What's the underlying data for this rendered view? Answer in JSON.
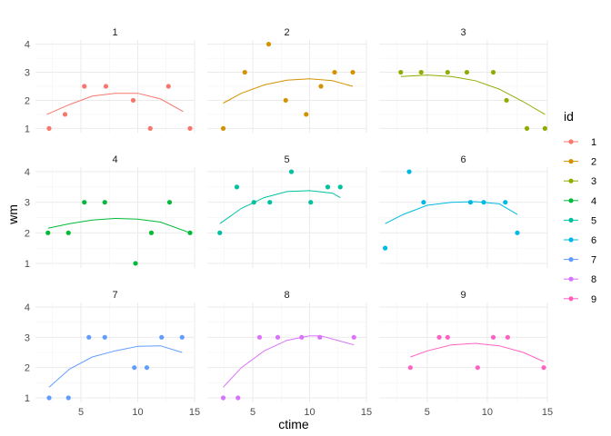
{
  "chart_data": {
    "type": "scatter",
    "facet_type": "wrap",
    "ncol": 3,
    "xlabel": "ctime",
    "ylabel": "wm",
    "xlim": [
      1,
      15
    ],
    "ylim": [
      0.85,
      4.15
    ],
    "x_ticks": [
      5,
      10,
      15
    ],
    "y_ticks": [
      1,
      2,
      3,
      4
    ],
    "grid": true,
    "smooth": "loess",
    "legend": {
      "title": "id",
      "position": "right",
      "entries": [
        "1",
        "2",
        "3",
        "4",
        "5",
        "6",
        "7",
        "8",
        "9"
      ]
    },
    "series": [
      {
        "name": "1",
        "color": "#F8766D",
        "points": [
          {
            "x": 2.2,
            "y": 1
          },
          {
            "x": 3.6,
            "y": 1.5
          },
          {
            "x": 5.3,
            "y": 2.5
          },
          {
            "x": 7.2,
            "y": 2.5
          },
          {
            "x": 9.6,
            "y": 2
          },
          {
            "x": 11.1,
            "y": 1
          },
          {
            "x": 12.7,
            "y": 2.5
          },
          {
            "x": 14.6,
            "y": 1
          }
        ],
        "fit": [
          {
            "x": 2,
            "y": 1.5
          },
          {
            "x": 4,
            "y": 1.85
          },
          {
            "x": 6,
            "y": 2.15
          },
          {
            "x": 8,
            "y": 2.25
          },
          {
            "x": 10,
            "y": 2.25
          },
          {
            "x": 12,
            "y": 2.05
          },
          {
            "x": 14,
            "y": 1.6
          }
        ]
      },
      {
        "name": "2",
        "color": "#D39200",
        "points": [
          {
            "x": 2.4,
            "y": 1
          },
          {
            "x": 4.3,
            "y": 3
          },
          {
            "x": 6.4,
            "y": 4
          },
          {
            "x": 7.9,
            "y": 2
          },
          {
            "x": 9.7,
            "y": 1.5
          },
          {
            "x": 11,
            "y": 2.5
          },
          {
            "x": 12.2,
            "y": 3
          },
          {
            "x": 13.8,
            "y": 3
          }
        ],
        "fit": [
          {
            "x": 2.4,
            "y": 1.9
          },
          {
            "x": 4,
            "y": 2.25
          },
          {
            "x": 6,
            "y": 2.55
          },
          {
            "x": 8,
            "y": 2.72
          },
          {
            "x": 10,
            "y": 2.77
          },
          {
            "x": 12,
            "y": 2.7
          },
          {
            "x": 13.8,
            "y": 2.5
          }
        ]
      },
      {
        "name": "3",
        "color": "#93AA00",
        "points": [
          {
            "x": 2.8,
            "y": 3
          },
          {
            "x": 4.5,
            "y": 3
          },
          {
            "x": 6.7,
            "y": 3
          },
          {
            "x": 8.3,
            "y": 3
          },
          {
            "x": 10.5,
            "y": 3
          },
          {
            "x": 11.6,
            "y": 2
          },
          {
            "x": 13.3,
            "y": 1
          },
          {
            "x": 14.8,
            "y": 1
          }
        ],
        "fit": [
          {
            "x": 2.8,
            "y": 2.85
          },
          {
            "x": 5,
            "y": 2.9
          },
          {
            "x": 7,
            "y": 2.85
          },
          {
            "x": 9,
            "y": 2.7
          },
          {
            "x": 11,
            "y": 2.4
          },
          {
            "x": 13,
            "y": 1.95
          },
          {
            "x": 14.8,
            "y": 1.5
          }
        ]
      },
      {
        "name": "4",
        "color": "#00BA38",
        "points": [
          {
            "x": 2.1,
            "y": 2
          },
          {
            "x": 3.9,
            "y": 2
          },
          {
            "x": 5.3,
            "y": 3
          },
          {
            "x": 7.1,
            "y": 3
          },
          {
            "x": 9.8,
            "y": 1
          },
          {
            "x": 11.2,
            "y": 2
          },
          {
            "x": 12.8,
            "y": 3
          },
          {
            "x": 14.6,
            "y": 2
          }
        ],
        "fit": [
          {
            "x": 2.1,
            "y": 2.15
          },
          {
            "x": 4,
            "y": 2.3
          },
          {
            "x": 6,
            "y": 2.42
          },
          {
            "x": 8,
            "y": 2.47
          },
          {
            "x": 10,
            "y": 2.45
          },
          {
            "x": 12,
            "y": 2.35
          },
          {
            "x": 14.6,
            "y": 2
          }
        ]
      },
      {
        "name": "5",
        "color": "#00C19F",
        "points": [
          {
            "x": 2.1,
            "y": 2
          },
          {
            "x": 3.6,
            "y": 3.5
          },
          {
            "x": 5.1,
            "y": 3
          },
          {
            "x": 6.5,
            "y": 3
          },
          {
            "x": 8.4,
            "y": 4
          },
          {
            "x": 10.1,
            "y": 3
          },
          {
            "x": 11.6,
            "y": 3.5
          },
          {
            "x": 12.7,
            "y": 3.5
          }
        ],
        "fit": [
          {
            "x": 2.1,
            "y": 2.3
          },
          {
            "x": 4,
            "y": 2.8
          },
          {
            "x": 6,
            "y": 3.15
          },
          {
            "x": 8,
            "y": 3.35
          },
          {
            "x": 10,
            "y": 3.38
          },
          {
            "x": 12,
            "y": 3.3
          },
          {
            "x": 12.7,
            "y": 3.15
          }
        ]
      },
      {
        "name": "6",
        "color": "#00B9E3",
        "points": [
          {
            "x": 1.5,
            "y": 1.5
          },
          {
            "x": 3.5,
            "y": 4
          },
          {
            "x": 4.7,
            "y": 3
          },
          {
            "x": 8.6,
            "y": 3
          },
          {
            "x": 9.7,
            "y": 3
          },
          {
            "x": 11.5,
            "y": 3
          },
          {
            "x": 12.5,
            "y": 2
          }
        ],
        "fit": [
          {
            "x": 1.5,
            "y": 2.3
          },
          {
            "x": 3,
            "y": 2.6
          },
          {
            "x": 5,
            "y": 2.9
          },
          {
            "x": 7,
            "y": 3
          },
          {
            "x": 9,
            "y": 3.02
          },
          {
            "x": 11,
            "y": 2.95
          },
          {
            "x": 12.5,
            "y": 2.6
          }
        ]
      },
      {
        "name": "7",
        "color": "#619CFF",
        "points": [
          {
            "x": 2.2,
            "y": 1
          },
          {
            "x": 3.9,
            "y": 1
          },
          {
            "x": 5.7,
            "y": 3
          },
          {
            "x": 7.1,
            "y": 3
          },
          {
            "x": 9.7,
            "y": 2
          },
          {
            "x": 10.8,
            "y": 2
          },
          {
            "x": 12.1,
            "y": 3
          },
          {
            "x": 13.9,
            "y": 3
          }
        ],
        "fit": [
          {
            "x": 2.2,
            "y": 1.35
          },
          {
            "x": 4,
            "y": 1.95
          },
          {
            "x": 6,
            "y": 2.35
          },
          {
            "x": 8,
            "y": 2.55
          },
          {
            "x": 10,
            "y": 2.7
          },
          {
            "x": 12,
            "y": 2.72
          },
          {
            "x": 13.9,
            "y": 2.5
          }
        ]
      },
      {
        "name": "8",
        "color": "#DB72FB",
        "points": [
          {
            "x": 2.4,
            "y": 1
          },
          {
            "x": 3.7,
            "y": 1
          },
          {
            "x": 5.6,
            "y": 3
          },
          {
            "x": 7.2,
            "y": 3
          },
          {
            "x": 9.3,
            "y": 3
          },
          {
            "x": 10.9,
            "y": 3
          },
          {
            "x": 13.9,
            "y": 3
          }
        ],
        "fit": [
          {
            "x": 2.4,
            "y": 1.35
          },
          {
            "x": 4,
            "y": 2
          },
          {
            "x": 6,
            "y": 2.55
          },
          {
            "x": 8,
            "y": 2.9
          },
          {
            "x": 10,
            "y": 3.05
          },
          {
            "x": 11,
            "y": 3.05
          },
          {
            "x": 13.9,
            "y": 2.75
          }
        ]
      },
      {
        "name": "9",
        "color": "#FF61C3",
        "points": [
          {
            "x": 3.6,
            "y": 2
          },
          {
            "x": 6,
            "y": 3
          },
          {
            "x": 6.7,
            "y": 3
          },
          {
            "x": 9.2,
            "y": 2
          },
          {
            "x": 10.5,
            "y": 3
          },
          {
            "x": 11.7,
            "y": 3
          },
          {
            "x": 14.7,
            "y": 2
          }
        ],
        "fit": [
          {
            "x": 3.6,
            "y": 2.35
          },
          {
            "x": 5,
            "y": 2.55
          },
          {
            "x": 7,
            "y": 2.75
          },
          {
            "x": 9,
            "y": 2.8
          },
          {
            "x": 11,
            "y": 2.72
          },
          {
            "x": 13,
            "y": 2.5
          },
          {
            "x": 14.7,
            "y": 2.2
          }
        ]
      }
    ]
  }
}
